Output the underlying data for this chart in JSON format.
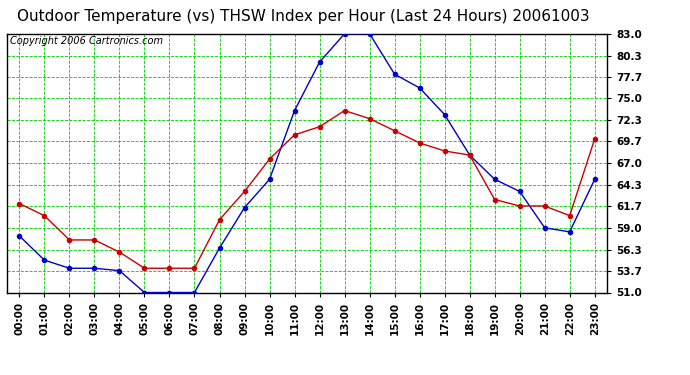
{
  "title": "Outdoor Temperature (vs) THSW Index per Hour (Last 24 Hours) 20061003",
  "copyright": "Copyright 2006 Cartronics.com",
  "hours": [
    "00:00",
    "01:00",
    "02:00",
    "03:00",
    "04:00",
    "05:00",
    "06:00",
    "07:00",
    "08:00",
    "09:00",
    "10:00",
    "11:00",
    "12:00",
    "13:00",
    "14:00",
    "15:00",
    "16:00",
    "17:00",
    "18:00",
    "19:00",
    "20:00",
    "21:00",
    "22:00",
    "23:00"
  ],
  "outdoor_temp": [
    62.0,
    60.5,
    57.5,
    57.5,
    56.0,
    54.0,
    54.0,
    54.0,
    60.0,
    63.5,
    67.5,
    70.5,
    71.5,
    73.5,
    72.5,
    71.0,
    69.5,
    68.5,
    68.0,
    62.5,
    61.7,
    61.7,
    60.5,
    70.0
  ],
  "thsw_index": [
    58.0,
    55.0,
    54.0,
    54.0,
    53.7,
    51.0,
    51.0,
    51.0,
    56.5,
    61.5,
    65.0,
    73.5,
    79.5,
    83.0,
    83.0,
    78.0,
    76.3,
    73.0,
    68.0,
    65.0,
    63.5,
    59.0,
    58.5,
    65.0
  ],
  "temp_color": "#cc0000",
  "thsw_color": "#0000cc",
  "bg_color": "#ffffff",
  "plot_bg_color": "#ffffff",
  "grid_color": "#00cc00",
  "ylim_min": 51.0,
  "ylim_max": 83.0,
  "yticks": [
    51.0,
    53.7,
    56.3,
    59.0,
    61.7,
    64.3,
    67.0,
    69.7,
    72.3,
    75.0,
    77.7,
    80.3,
    83.0
  ],
  "title_fontsize": 11,
  "copyright_fontsize": 7,
  "tick_fontsize": 7.5,
  "marker_size": 3,
  "line_width": 1.0
}
